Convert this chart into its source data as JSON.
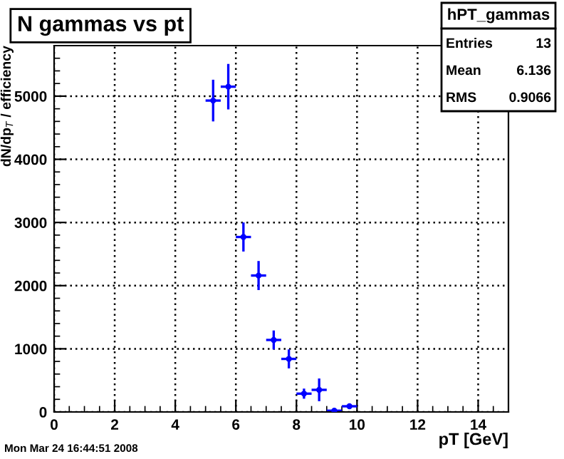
{
  "chart_data": {
    "type": "scatter",
    "title": "N gammas vs pt",
    "xlabel": "pT [GeV]",
    "ylabel": "dN/dp$_{T}$ / efficiency",
    "x": [
      5.25,
      5.75,
      6.25,
      6.75,
      7.25,
      7.75,
      8.25,
      8.75,
      9.25,
      9.75
    ],
    "series": [
      {
        "color": "#0000ff",
        "values": [
          4930,
          5150,
          2770,
          2160,
          1140,
          840,
          290,
          350,
          20,
          90
        ],
        "errors": [
          330,
          360,
          230,
          230,
          150,
          150,
          80,
          180,
          null,
          35
        ],
        "xerrors": [
          0.25,
          0.25,
          0.25,
          0.25,
          0.25,
          0.25,
          0.25,
          0.25,
          0.25,
          0.25
        ]
      }
    ],
    "xlim": [
      0,
      15
    ],
    "xticks": [
      0,
      2,
      4,
      6,
      8,
      10,
      12,
      14
    ],
    "ylim": [
      0,
      5800
    ],
    "yticks": [
      0,
      1000,
      2000,
      3000,
      4000,
      5000
    ],
    "grid": true,
    "legend": false,
    "annotations": [
      "hPT_gammas",
      "Entries",
      "13",
      "Mean",
      "6.136",
      "RMS",
      "0.9066",
      "Mon Mar 24 16:44:51 2008"
    ]
  }
}
